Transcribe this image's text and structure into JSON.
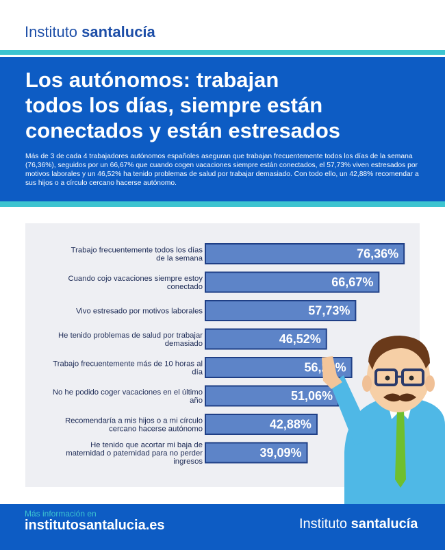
{
  "header": {
    "logo_light": "Instituto",
    "logo_bold": "santalucía"
  },
  "hero": {
    "title_lines": [
      "Los autónomos: trabajan",
      "todos los días, siempre están",
      "conectados y están estresados"
    ],
    "intro": "Más de 3 de cada 4 trabajadores autónomos españoles aseguran que trabajan frecuentemente todos los días de la semana (76,36%), seguidos por un 66,67% que cuando cogen vacaciones siempre están conectados, el 57,73% viven estresados por motivos laborales y un 46,52% ha tenido problemas de salud por trabajar demasiado. Con todo ello, un 42,88% recomendar a sus hijos o a círculo cercano hacerse autónomo."
  },
  "colors": {
    "brand_blue": "#0d5cc4",
    "accent_teal": "#3cc4d0",
    "bar_fill": "#5d84c8",
    "bar_border": "#1f3f86",
    "panel_bg": "#eeeff3"
  },
  "chart_data": {
    "type": "bar",
    "orientation": "horizontal",
    "categories": [
      [
        "Trabajo frecuentemente todos los días",
        "de la semana"
      ],
      [
        "Cuando cojo vacaciones siempre estoy",
        "conectado"
      ],
      [
        "Vivo estresado por motivos laborales"
      ],
      [
        "He tenido problemas de salud por trabajar",
        "demasiado"
      ],
      [
        "Trabajo frecuentemente más de 10 horas al",
        "día"
      ],
      [
        "No he podido coger vacaciones en el último",
        "año"
      ],
      [
        "Recomendaría a mis hijos o a mi círculo",
        "cercano hacerse autónomo"
      ],
      [
        "He tenido que acortar mi baja de",
        "maternidad o paternidad para no perder",
        "ingresos"
      ]
    ],
    "values": [
      76.36,
      66.67,
      57.73,
      46.52,
      56.21,
      51.06,
      42.88,
      39.09
    ],
    "value_labels": [
      "76,36%",
      "66,67%",
      "57,73%",
      "46,52%",
      "56,21%",
      "51,06%",
      "42,88%",
      "39,09%"
    ],
    "xlim": [
      0,
      100
    ],
    "grid": false,
    "legend": "none"
  },
  "footer": {
    "more_info": "Más información en",
    "site": "institutosantalucia.es",
    "logo_light": "Instituto",
    "logo_bold": "santalucía"
  }
}
